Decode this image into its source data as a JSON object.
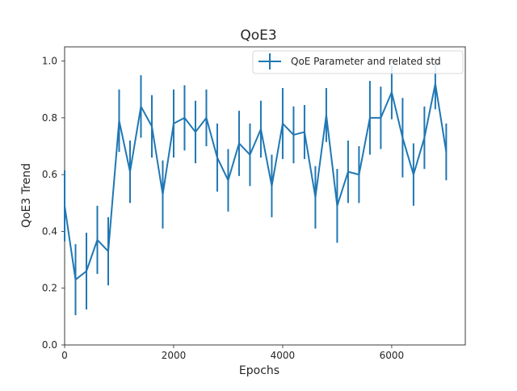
{
  "chart_data": {
    "type": "line",
    "title": "QoE3",
    "xlabel": "Epochs",
    "ylabel": "QoE3 Trend",
    "xlim": [
      0,
      7350
    ],
    "ylim": [
      0.0,
      1.05
    ],
    "x_ticks": [
      0,
      2000,
      4000,
      6000
    ],
    "x_tick_labels": [
      "0",
      "2000",
      "4000",
      "6000"
    ],
    "y_ticks": [
      0.0,
      0.2,
      0.4,
      0.6,
      0.8,
      1.0
    ],
    "y_tick_labels": [
      "0.0",
      "0.2",
      "0.4",
      "0.6",
      "0.8",
      "1.0"
    ],
    "grid": false,
    "legend_position": "top-right",
    "series": [
      {
        "name": "QoE Parameter and related std",
        "color": "#1f77b4",
        "x": [
          0,
          200,
          400,
          600,
          800,
          1000,
          1200,
          1400,
          1600,
          1800,
          2000,
          2200,
          2400,
          2600,
          2800,
          3000,
          3200,
          3400,
          3600,
          3800,
          4000,
          4200,
          4400,
          4600,
          4800,
          5000,
          5200,
          5400,
          5600,
          5800,
          6000,
          6200,
          6400,
          6600,
          6800,
          7000
        ],
        "y": [
          0.49,
          0.23,
          0.26,
          0.37,
          0.33,
          0.79,
          0.61,
          0.84,
          0.77,
          0.53,
          0.78,
          0.8,
          0.75,
          0.8,
          0.66,
          0.58,
          0.71,
          0.67,
          0.76,
          0.56,
          0.78,
          0.74,
          0.75,
          0.52,
          0.81,
          0.49,
          0.61,
          0.6,
          0.8,
          0.8,
          0.89,
          0.73,
          0.6,
          0.73,
          0.92,
          0.68
        ],
        "std": [
          0.125,
          0.125,
          0.135,
          0.12,
          0.12,
          0.11,
          0.11,
          0.11,
          0.11,
          0.12,
          0.12,
          0.115,
          0.11,
          0.1,
          0.12,
          0.11,
          0.115,
          0.11,
          0.1,
          0.11,
          0.125,
          0.1,
          0.095,
          0.11,
          0.095,
          0.13,
          0.11,
          0.1,
          0.13,
          0.11,
          0.095,
          0.14,
          0.11,
          0.11,
          0.09,
          0.1
        ]
      }
    ]
  }
}
